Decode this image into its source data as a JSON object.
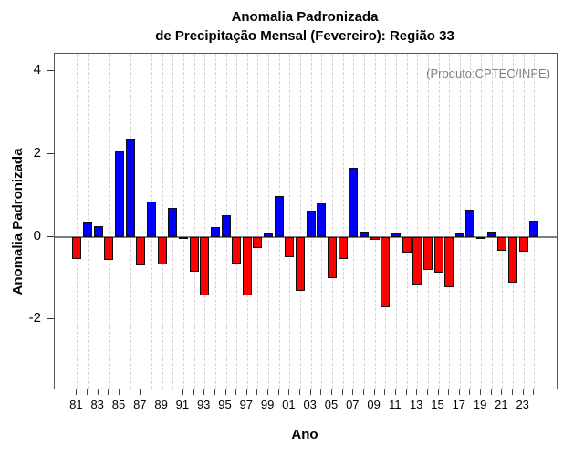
{
  "title": {
    "line1": "Anomalia Padronizada",
    "line2": "de Precipitação Mensal (Fevereiro): Região 33"
  },
  "annotation": "(Produto:CPTEC/INPE)",
  "axes": {
    "xlabel": "Ano",
    "ylabel": "Anomalia Padronizada"
  },
  "chart_data": {
    "type": "bar",
    "title": "Anomalia Padronizada de Precipitação Mensal (Fevereiro): Região 33",
    "xlabel": "Ano",
    "ylabel": "Anomalia Padronizada",
    "years": [
      1981,
      1982,
      1983,
      1984,
      1985,
      1986,
      1987,
      1988,
      1989,
      1990,
      1991,
      1992,
      1993,
      1994,
      1995,
      1996,
      1997,
      1998,
      1999,
      2000,
      2001,
      2002,
      2003,
      2004,
      2005,
      2006,
      2007,
      2008,
      2009,
      2010,
      2011,
      2012,
      2013,
      2014,
      2015,
      2016,
      2017,
      2018,
      2019,
      2020,
      2021,
      2022,
      2023,
      2024
    ],
    "values": [
      -0.53,
      0.37,
      0.27,
      -0.55,
      2.08,
      2.39,
      -0.69,
      0.85,
      -0.66,
      0.71,
      -0.02,
      -0.83,
      -1.4,
      0.25,
      0.54,
      -0.63,
      -1.42,
      -0.27,
      0.09,
      0.99,
      -0.49,
      -1.31,
      0.64,
      0.81,
      -0.99,
      -0.53,
      1.67,
      0.14,
      -0.07,
      -1.69,
      0.12,
      -0.37,
      -1.15,
      -0.8,
      -0.87,
      -1.22,
      0.08,
      0.66,
      -0.03,
      0.14,
      -0.32,
      -1.11,
      -0.35,
      0.4
    ],
    "xtick_labels": [
      "81",
      "83",
      "85",
      "87",
      "89",
      "91",
      "93",
      "95",
      "97",
      "99",
      "01",
      "03",
      "05",
      "07",
      "09",
      "11",
      "13",
      "15",
      "17",
      "19",
      "21",
      "23"
    ],
    "yticks": [
      -2,
      0,
      2,
      4
    ],
    "ylim": [
      -3.67,
      4.42
    ],
    "grid": "vertical-dashed",
    "legend": "none",
    "positive_color": "#0000ff",
    "negative_color": "#ff0000",
    "bar_border_color": "#0f0f0f",
    "zero_line_color": "#808080",
    "annotation": "(Produto:CPTEC/INPE)"
  }
}
